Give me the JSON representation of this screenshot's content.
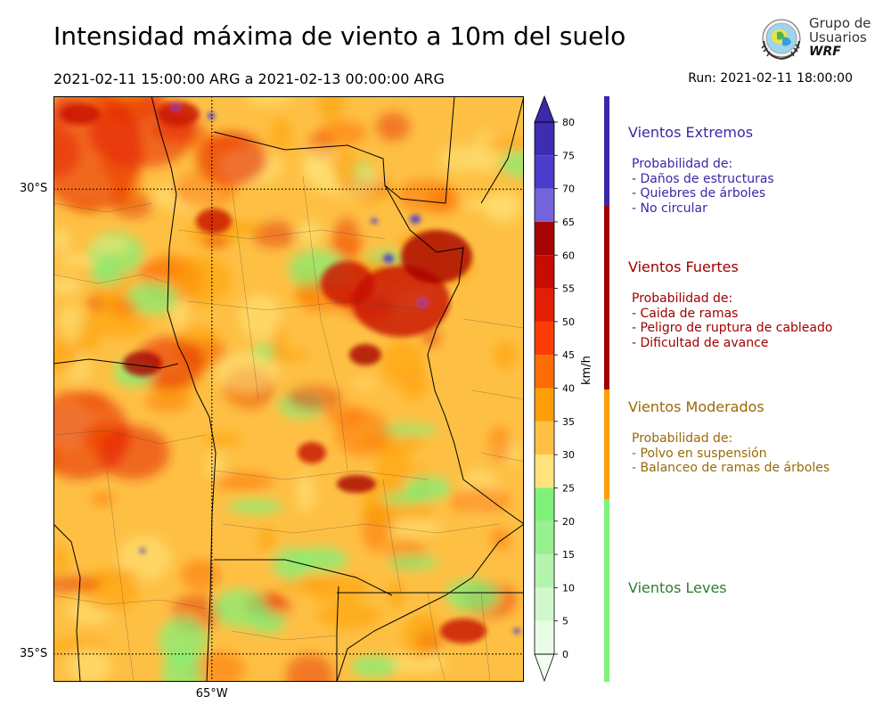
{
  "header": {
    "title": "Intensidad máxima de viento a 10m del suelo",
    "period": "2021-02-11 15:00:00 ARG  a  2021-02-13 00:00:00 ARG",
    "run": "Run: 2021-02-11 18:00:00"
  },
  "logo": {
    "line1": "Grupo de",
    "line2": "Usuarios",
    "line3": "WRF"
  },
  "map": {
    "lat_labels": [
      {
        "text": "30°S",
        "lat": -30
      },
      {
        "text": "35°S",
        "lat": -35
      }
    ],
    "lon_labels": [
      {
        "text": "65°W",
        "lon": -65
      }
    ],
    "lon_range": [
      -66.7,
      -61.65
    ],
    "lat_range": [
      -35.3,
      -29.0
    ],
    "grid": "dotted",
    "colors": {
      "background": "#fec044",
      "low": "#7ef27a",
      "moderate": "#fe9f0a",
      "high": "#d90e0a",
      "extreme": "#4b3ccc"
    }
  },
  "colorbar": {
    "unit": "km/h",
    "ticks": [
      "0",
      "5",
      "10",
      "15",
      "20",
      "25",
      "30",
      "35",
      "40",
      "45",
      "50",
      "55",
      "60",
      "65",
      "70",
      "75",
      "80"
    ],
    "bins": [
      {
        "from": 0,
        "to": 5,
        "color": "#e8fce6"
      },
      {
        "from": 5,
        "to": 10,
        "color": "#d0f8cc"
      },
      {
        "from": 10,
        "to": 15,
        "color": "#b4f4ae"
      },
      {
        "from": 15,
        "to": 20,
        "color": "#98f090"
      },
      {
        "from": 20,
        "to": 25,
        "color": "#7ef27a"
      },
      {
        "from": 25,
        "to": 30,
        "color": "#fee47a"
      },
      {
        "from": 30,
        "to": 35,
        "color": "#fec044"
      },
      {
        "from": 35,
        "to": 40,
        "color": "#fe9f0a"
      },
      {
        "from": 40,
        "to": 45,
        "color": "#fe6c06"
      },
      {
        "from": 45,
        "to": 50,
        "color": "#fe3c03"
      },
      {
        "from": 50,
        "to": 55,
        "color": "#e31e05"
      },
      {
        "from": 55,
        "to": 60,
        "color": "#c70c04"
      },
      {
        "from": 60,
        "to": 65,
        "color": "#a70503"
      },
      {
        "from": 65,
        "to": 70,
        "color": "#7464dc"
      },
      {
        "from": 70,
        "to": 75,
        "color": "#4b3ccc"
      },
      {
        "from": 75,
        "to": 80,
        "color": "#3e2db0"
      }
    ],
    "over_color": "#3a2aa8",
    "under_color": "#f2fef0"
  },
  "categories": [
    {
      "title": "Vientos Extremos",
      "color": "#3a27a8",
      "from": 65,
      "to": 80,
      "heading": "Probabilidad de:",
      "items": [
        "- Daños de estructuras",
        "- Quiebres de árboles",
        "- No circular"
      ]
    },
    {
      "title": "Vientos Fuertes",
      "color": "#a00000",
      "from": 40,
      "to": 65,
      "heading": "Probabilidad de:",
      "items": [
        "- Caida de ramas",
        "- Peligro de ruptura de cableado",
        "- Dificultad de avance"
      ]
    },
    {
      "title": "Vientos Moderados",
      "color": "#9a6a08",
      "bar_color": "#fe9f0a",
      "from": 25,
      "to": 40,
      "heading": "Probabilidad de:",
      "items": [
        "- Polvo en suspensión",
        "- Balanceo de ramas de árboles"
      ]
    },
    {
      "title": "Vientos Leves",
      "color": "#2e7d32",
      "bar_color": "#7ef27a",
      "from": 0,
      "to": 25,
      "heading": "",
      "items": []
    }
  ]
}
